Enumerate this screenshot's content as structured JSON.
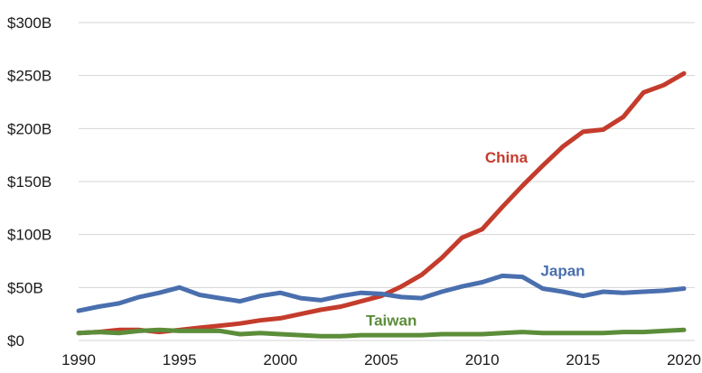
{
  "chart_data": {
    "type": "line",
    "title": "",
    "xlabel": "",
    "ylabel": "",
    "x": [
      1990,
      1991,
      1992,
      1993,
      1994,
      1995,
      1996,
      1997,
      1998,
      1999,
      2000,
      2001,
      2002,
      2003,
      2004,
      2005,
      2006,
      2007,
      2008,
      2009,
      2010,
      2011,
      2012,
      2013,
      2014,
      2015,
      2016,
      2017,
      2018,
      2019,
      2020
    ],
    "xlim": [
      1990,
      2020
    ],
    "ylim": [
      0,
      300
    ],
    "y_unit": "billions USD",
    "grid": "horizontal",
    "legend": "inline labels",
    "x_ticks": [
      {
        "value": 1990,
        "label": "1990"
      },
      {
        "value": 1995,
        "label": "1995"
      },
      {
        "value": 2000,
        "label": "2000"
      },
      {
        "value": 2005,
        "label": "2005"
      },
      {
        "value": 2010,
        "label": "2010"
      },
      {
        "value": 2015,
        "label": "2015"
      },
      {
        "value": 2020,
        "label": "2020"
      }
    ],
    "y_ticks": [
      {
        "value": 0,
        "label": "$0"
      },
      {
        "value": 50,
        "label": "$50B"
      },
      {
        "value": 100,
        "label": "$100B"
      },
      {
        "value": 150,
        "label": "$150B"
      },
      {
        "value": 200,
        "label": "$200B"
      },
      {
        "value": 250,
        "label": "$250B"
      },
      {
        "value": 300,
        "label": "$300B"
      }
    ],
    "series": [
      {
        "name": "China",
        "color": "#c43c2c",
        "label_anchor": {
          "x": 2011.2,
          "y": 173
        },
        "values": [
          7,
          8,
          10,
          10,
          8,
          10,
          12,
          14,
          16,
          19,
          21,
          25,
          29,
          32,
          37,
          42,
          51,
          62,
          78,
          97,
          105,
          126,
          146,
          165,
          183,
          197,
          199,
          211,
          234,
          241,
          252
        ]
      },
      {
        "name": "Japan",
        "color": "#4a6fae",
        "label_anchor": {
          "x": 2014,
          "y": 66
        },
        "values": [
          28,
          32,
          35,
          41,
          45,
          50,
          43,
          40,
          37,
          42,
          45,
          40,
          38,
          42,
          45,
          44,
          41,
          40,
          46,
          51,
          55,
          61,
          60,
          49,
          46,
          42,
          46,
          45,
          46,
          47,
          49
        ]
      },
      {
        "name": "Taiwan",
        "color": "#5c8d3a",
        "label_anchor": {
          "x": 2005.5,
          "y": 19
        },
        "values": [
          7,
          8,
          7,
          9,
          10,
          9,
          9,
          9,
          6,
          7,
          6,
          5,
          4,
          4,
          5,
          5,
          5,
          5,
          6,
          6,
          6,
          7,
          8,
          7,
          7,
          7,
          7,
          8,
          8,
          9,
          10
        ]
      }
    ]
  }
}
